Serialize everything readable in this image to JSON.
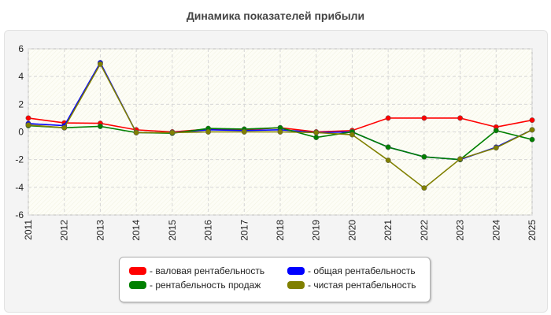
{
  "chart_data": {
    "type": "line",
    "title": "Динамика показателей прибыли",
    "xlabel": "",
    "ylabel": "",
    "x": [
      "2011",
      "2012",
      "2013",
      "2014",
      "2015",
      "2016",
      "2017",
      "2018",
      "2019",
      "2020",
      "2021",
      "2022",
      "2023",
      "2024",
      "2025"
    ],
    "ylim": [
      -6,
      6
    ],
    "yticks": [
      "6",
      "4",
      "2",
      "0",
      "-2",
      "-4",
      "-6"
    ],
    "grid": true,
    "legend_position": "bottom",
    "series": [
      {
        "name": "- валовая рентабельность",
        "color": "#ff0000",
        "values": [
          1.0,
          0.65,
          0.62,
          0.15,
          0.0,
          0.2,
          0.15,
          0.3,
          0.0,
          0.1,
          1.0,
          1.0,
          1.0,
          0.35,
          0.85
        ]
      },
      {
        "name": "- общая рентабельность",
        "color": "#0000ff",
        "values": [
          0.6,
          0.45,
          5.0,
          -0.05,
          -0.05,
          0.15,
          0.1,
          0.15,
          -0.05,
          0.0,
          -1.1,
          -1.8,
          -2.0,
          -1.1,
          0.15
        ]
      },
      {
        "name": "- рентабельность продаж",
        "color": "#008000",
        "values": [
          0.45,
          0.3,
          0.4,
          -0.05,
          -0.1,
          0.25,
          0.2,
          0.3,
          -0.4,
          0.0,
          -1.1,
          -1.8,
          -2.0,
          0.1,
          -0.55
        ]
      },
      {
        "name": "- чистая рентабельность",
        "color": "#808000",
        "values": [
          0.5,
          0.3,
          4.9,
          -0.05,
          -0.05,
          0.0,
          0.0,
          0.0,
          -0.05,
          -0.2,
          -2.05,
          -4.05,
          -1.95,
          -1.15,
          0.15
        ]
      }
    ]
  }
}
